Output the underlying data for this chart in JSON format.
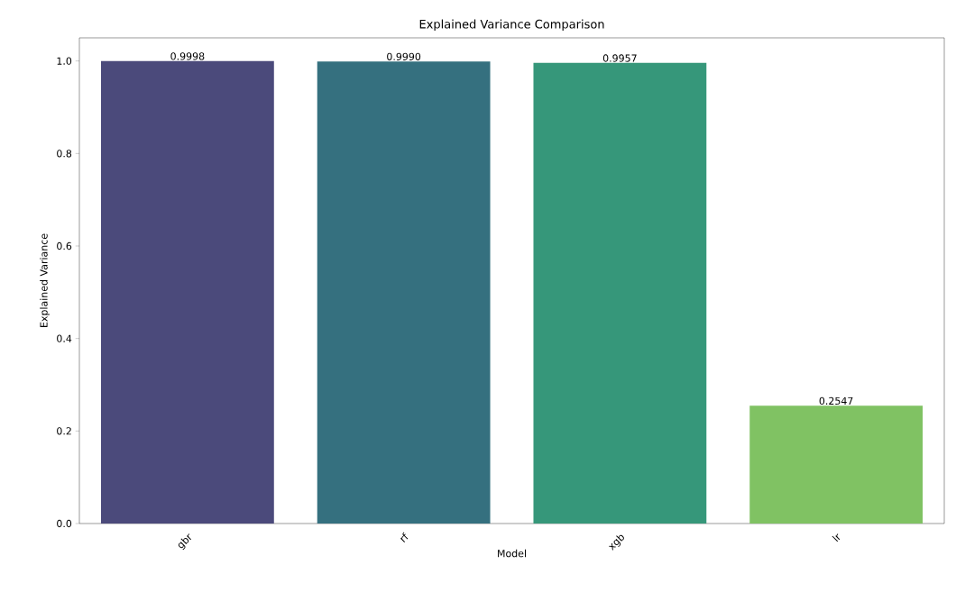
{
  "chart_data": {
    "type": "bar",
    "title": "Explained Variance Comparison",
    "xlabel": "Model",
    "ylabel": "Explained Variance",
    "categories": [
      "gbr",
      "rf",
      "xgb",
      "lr"
    ],
    "values": [
      0.9998,
      0.999,
      0.9957,
      0.2547
    ],
    "value_labels": [
      "0.9998",
      "0.9990",
      "0.9957",
      "0.2547"
    ],
    "colors": [
      "#4b4a7b",
      "#35707f",
      "#36977a",
      "#80c263"
    ],
    "ylim": [
      0,
      1.05
    ],
    "yticks": [
      {
        "value": 0,
        "label": "0.0"
      },
      {
        "value": 0.2,
        "label": "0.2"
      },
      {
        "value": 0.4,
        "label": "0.4"
      },
      {
        "value": 0.6,
        "label": "0.6"
      },
      {
        "value": 0.8,
        "label": "0.8"
      },
      {
        "value": 1.0,
        "label": "1.0"
      }
    ],
    "grid": false
  }
}
